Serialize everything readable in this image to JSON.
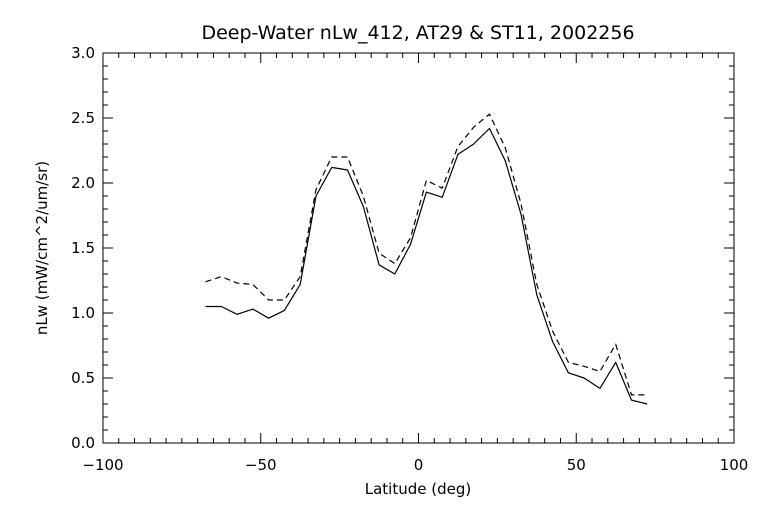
{
  "chart_data": {
    "type": "line",
    "title": "Deep-Water nLw_412, AT29 & ST11, 2002256",
    "xlabel": "Latitude (deg)",
    "ylabel": "nLw (mW/cm^2/um/sr)",
    "xlim": [
      -100,
      100
    ],
    "ylim": [
      0.0,
      3.0
    ],
    "xticks": [
      -100,
      -50,
      0,
      50,
      100
    ],
    "xtick_labels": [
      "−100",
      "−50",
      "0",
      "50",
      "100"
    ],
    "yticks": [
      0.0,
      0.5,
      1.0,
      1.5,
      2.0,
      2.5,
      3.0
    ],
    "ytick_labels": [
      "0.0",
      "0.5",
      "1.0",
      "1.5",
      "2.0",
      "2.5",
      "3.0"
    ],
    "grid": false,
    "colors": {
      "foreground": "#000000",
      "background": "#ffffff"
    },
    "series": [
      {
        "style": "solid",
        "x": [
          -67.5,
          -62.5,
          -57.5,
          -52.5,
          -47.5,
          -42.5,
          -37.5,
          -32.5,
          -27.5,
          -22.5,
          -17.5,
          -12.5,
          -7.5,
          -2.5,
          2.5,
          7.5,
          12.5,
          17.5,
          22.5,
          27.5,
          32.5,
          37.5,
          42.5,
          47.5,
          52.5,
          57.5,
          62.5,
          67.5,
          72.5
        ],
        "y": [
          1.05,
          1.05,
          0.99,
          1.03,
          0.96,
          1.02,
          1.22,
          1.9,
          2.12,
          2.1,
          1.82,
          1.37,
          1.3,
          1.53,
          1.93,
          1.89,
          2.22,
          2.3,
          2.42,
          2.17,
          1.76,
          1.14,
          0.78,
          0.54,
          0.5,
          0.42,
          0.62,
          0.33,
          0.3
        ]
      },
      {
        "style": "dashed",
        "x": [
          -67.5,
          -62.5,
          -57.5,
          -52.5,
          -47.5,
          -42.5,
          -37.5,
          -32.5,
          -27.5,
          -22.5,
          -17.5,
          -12.5,
          -7.5,
          -2.5,
          2.5,
          7.5,
          12.5,
          17.5,
          22.5,
          27.5,
          32.5,
          37.5,
          42.5,
          47.5,
          52.5,
          57.5,
          62.5,
          67.5,
          72.5
        ],
        "y": [
          1.24,
          1.28,
          1.23,
          1.22,
          1.1,
          1.1,
          1.28,
          1.95,
          2.2,
          2.2,
          1.9,
          1.46,
          1.38,
          1.58,
          2.02,
          1.96,
          2.28,
          2.43,
          2.53,
          2.27,
          1.84,
          1.22,
          0.86,
          0.62,
          0.59,
          0.55,
          0.76,
          0.37,
          0.37
        ]
      }
    ]
  }
}
